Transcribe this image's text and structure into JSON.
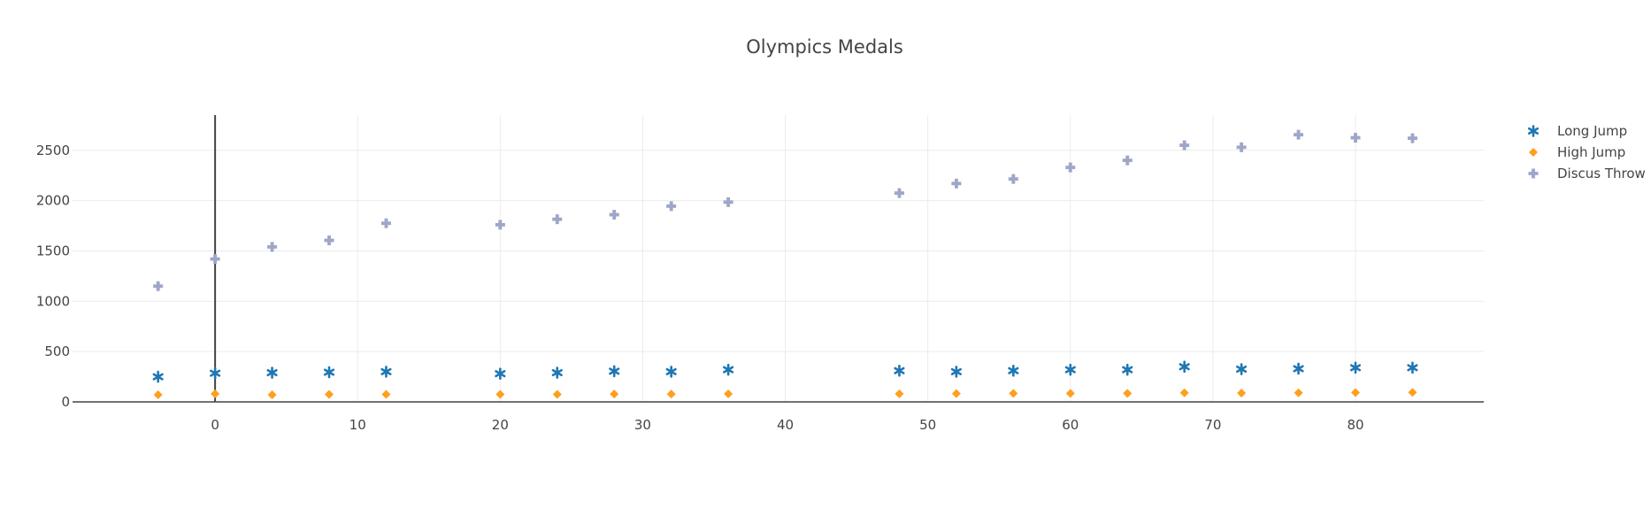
{
  "chart_data": {
    "type": "scatter",
    "title": "Olympics Medals",
    "xlabel": "",
    "ylabel": "",
    "xlim": [
      -10,
      89
    ],
    "ylim": [
      0,
      2850
    ],
    "xticks": [
      0,
      10,
      20,
      30,
      40,
      50,
      60,
      70,
      80
    ],
    "yticks": [
      0,
      500,
      1000,
      1500,
      2000,
      2500
    ],
    "grid": true,
    "legend_position": "top-right",
    "x": [
      -4,
      0,
      4,
      8,
      12,
      20,
      24,
      28,
      32,
      36,
      48,
      52,
      56,
      60,
      64,
      68,
      72,
      76,
      80,
      84
    ],
    "series": [
      {
        "name": "Long Jump",
        "marker": "asterisk",
        "color": "#1f77b4",
        "values": [
          250,
          285,
          290,
          295,
          300,
          280,
          290,
          305,
          300,
          320,
          310,
          300,
          310,
          320,
          320,
          350,
          325,
          330,
          340,
          340
        ]
      },
      {
        "name": "High Jump",
        "marker": "diamond",
        "color": "#ff9f1c",
        "values": [
          70,
          80,
          70,
          75,
          75,
          75,
          75,
          78,
          78,
          80,
          80,
          82,
          85,
          85,
          85,
          90,
          88,
          90,
          92,
          95
        ]
      },
      {
        "name": "Discus Throw",
        "marker": "cross",
        "color": "#9fa6c8",
        "values": [
          1150,
          1420,
          1540,
          1605,
          1775,
          1760,
          1815,
          1860,
          1945,
          1985,
          2075,
          2170,
          2215,
          2330,
          2400,
          2550,
          2530,
          2655,
          2625,
          2620
        ]
      }
    ]
  }
}
